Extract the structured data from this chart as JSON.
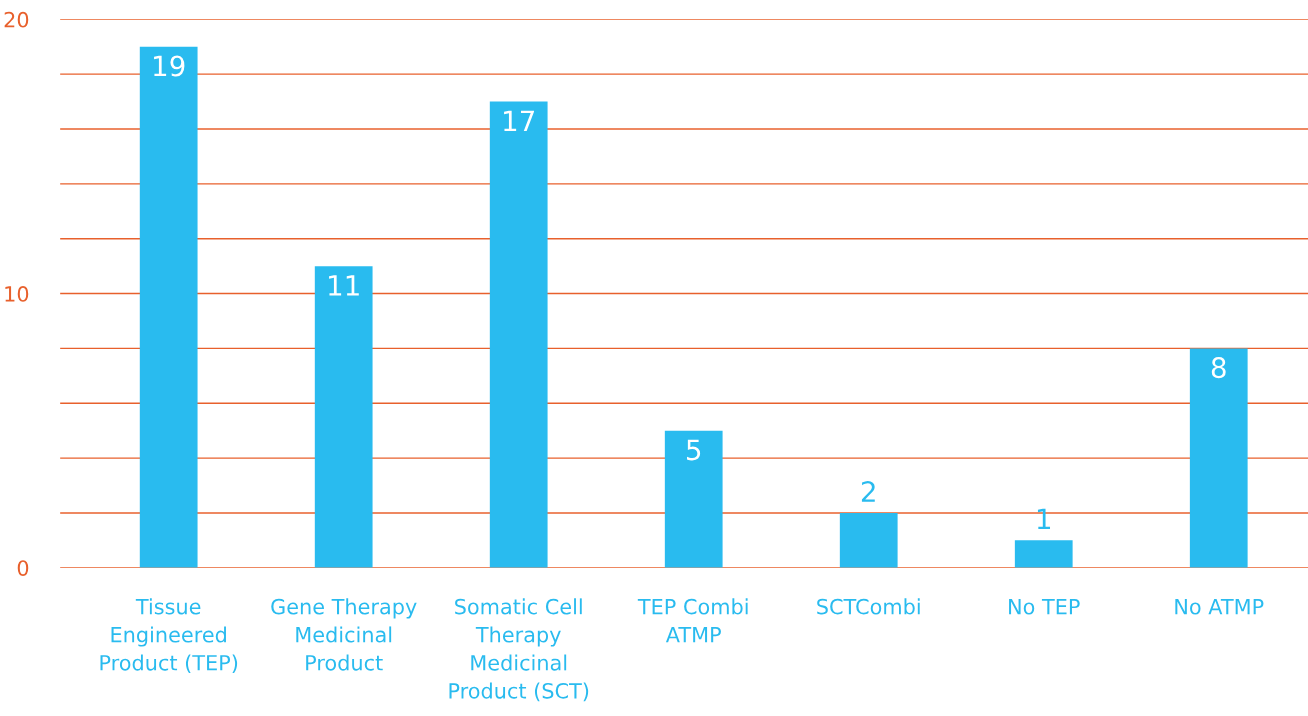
{
  "chart_data": {
    "type": "bar",
    "categories": [
      "Tissue\nEngineered\nProduct (TEP)",
      "Gene Therapy\nMedicinal\nProduct",
      "Somatic Cell\nTherapy\nMedicinal\nProduct (SCT)",
      "TEP Combi\nATMP",
      "SCTCombi",
      "No TEP",
      "No ATMP"
    ],
    "values": [
      19,
      11,
      17,
      5,
      2,
      1,
      8
    ],
    "color": "#29bbef",
    "ylim": [
      0,
      20
    ],
    "yticks": [
      0,
      {
        "value": 2,
        "label": null
      },
      {
        "value": 4,
        "label": null
      },
      {
        "value": 6,
        "label": null
      },
      {
        "value": 8,
        "label": null
      },
      10,
      {
        "value": 12,
        "label": null
      },
      {
        "value": 14,
        "label": null
      },
      {
        "value": 16,
        "label": null
      },
      {
        "value": 18,
        "label": null
      },
      20
    ],
    "grid": "y",
    "data_labels": true
  }
}
